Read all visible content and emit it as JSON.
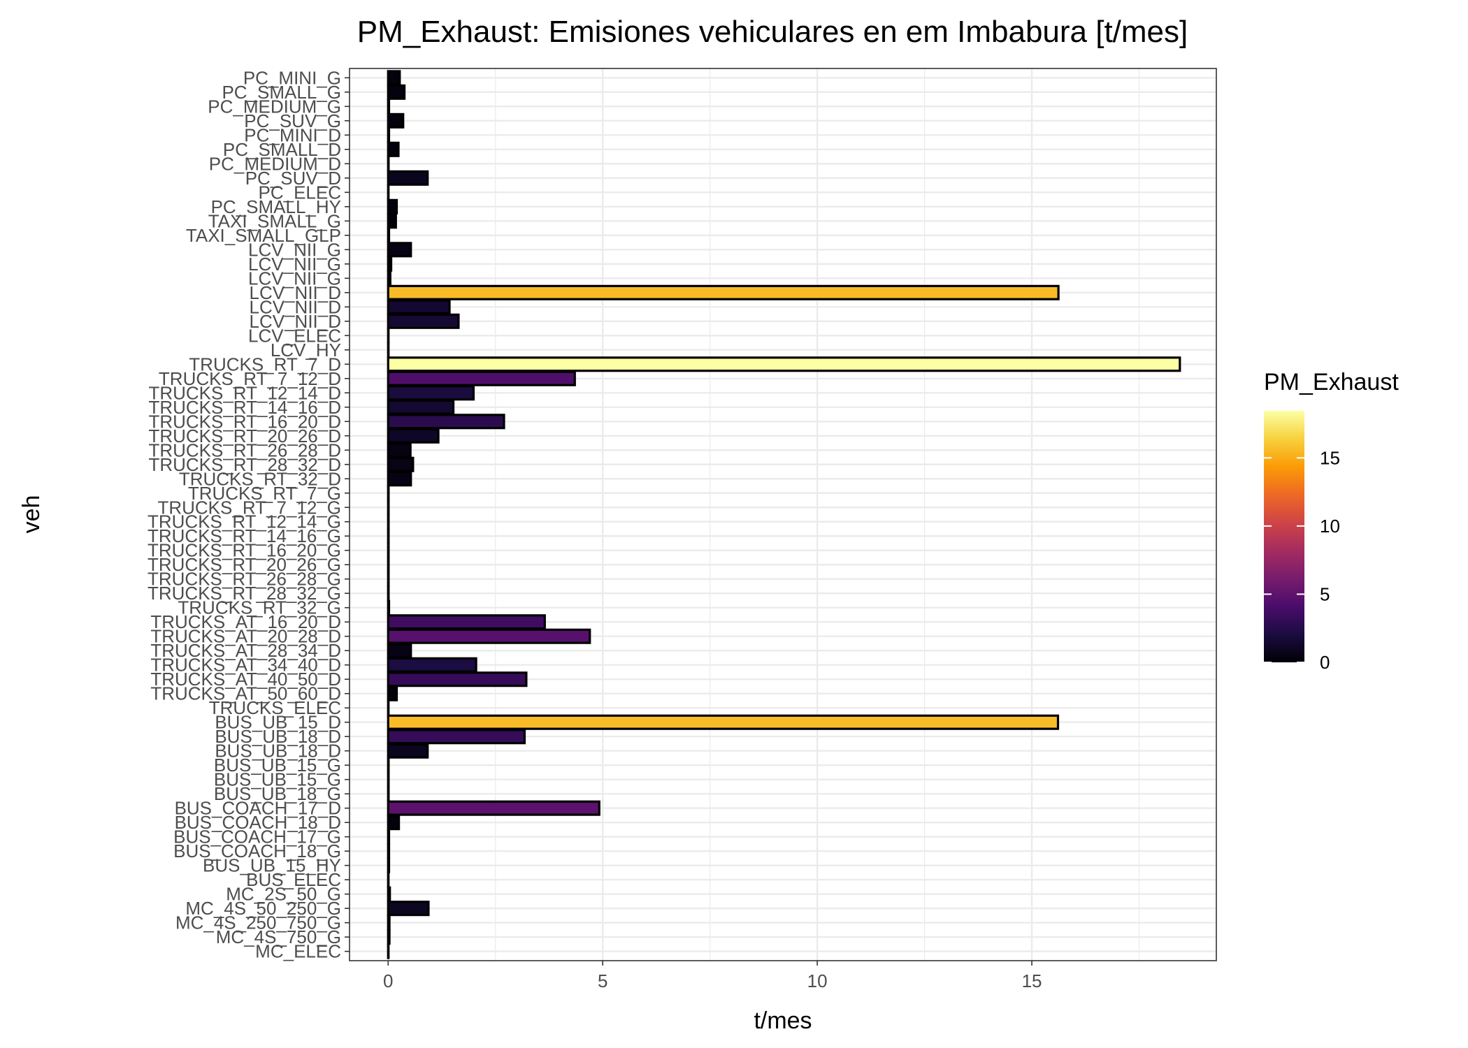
{
  "chart_data": {
    "type": "bar",
    "orientation": "horizontal",
    "title": "PM_Exhaust: Emisiones vehiculares en  em Imbabura [t/mes]",
    "xlabel": "t/mes",
    "ylabel": "veh",
    "xlim": [
      -0.9,
      19.3
    ],
    "x_ticks": [
      0,
      5,
      10,
      15
    ],
    "grid": true,
    "categories": [
      "PC_MINI_G",
      "PC_SMALL_G",
      "PC_MEDIUM_G",
      "PC_SUV_G",
      "PC_MINI_D",
      "PC_SMALL_D",
      "PC_MEDIUM_D",
      "PC_SUV_D",
      "PC_ELEC",
      "PC_SMALL_HY",
      "TAXI_SMALL_G",
      "TAXI_SMALL_GLP",
      "LCV_NII_G",
      "LCV_NII_G",
      "LCV_NII_G",
      "LCV_NII_D",
      "LCV_NII_D",
      "LCV_NII_D",
      "LCV_ELEC",
      "LCV_HY",
      "TRUCKS_RT_7_D",
      "TRUCKS_RT_7_12_D",
      "TRUCKS_RT_12_14_D",
      "TRUCKS_RT_14_16_D",
      "TRUCKS_RT_16_20_D",
      "TRUCKS_RT_20_26_D",
      "TRUCKS_RT_26_28_D",
      "TRUCKS_RT_28_32_D",
      "TRUCKS_RT_32_D",
      "TRUCKS_RT_7_G",
      "TRUCKS_RT_7_12_G",
      "TRUCKS_RT_12_14_G",
      "TRUCKS_RT_14_16_G",
      "TRUCKS_RT_16_20_G",
      "TRUCKS_RT_20_26_G",
      "TRUCKS_RT_26_28_G",
      "TRUCKS_RT_28_32_G",
      "TRUCKS_RT_32_G",
      "TRUCKS_AT_16_20_D",
      "TRUCKS_AT_20_28_D",
      "TRUCKS_AT_28_34_D",
      "TRUCKS_AT_34_40_D",
      "TRUCKS_AT_40_50_D",
      "TRUCKS_AT_50_60_D",
      "TRUCKS_ELEC",
      "BUS_UB_15_D",
      "BUS_UB_18_D",
      "BUS_UB_18_D",
      "BUS_UB_15_G",
      "BUS_UB_15_G",
      "BUS_UB_18_G",
      "BUS_COACH_17_D",
      "BUS_COACH_18_D",
      "BUS_COACH_17_G",
      "BUS_COACH_18_G",
      "BUS_UB_15_HY",
      "BUS_ELEC",
      "MC_2S_50_G",
      "MC_4S_50_250_G",
      "MC_4S_250_750_G",
      "MC_4S_750_G",
      "MC_ELEC"
    ],
    "values": [
      0.27,
      0.38,
      0.02,
      0.35,
      0.02,
      0.24,
      0.01,
      0.92,
      0.0,
      0.2,
      0.18,
      0.02,
      0.53,
      0.07,
      0.05,
      15.62,
      1.43,
      1.64,
      0.0,
      0.0,
      18.45,
      4.35,
      1.99,
      1.52,
      2.7,
      1.17,
      0.52,
      0.58,
      0.53,
      0.01,
      0.01,
      0.01,
      0.01,
      0.01,
      0.01,
      0.01,
      0.01,
      0.02,
      3.65,
      4.7,
      0.53,
      2.05,
      3.22,
      0.2,
      0.0,
      15.61,
      3.18,
      0.92,
      0.01,
      0.01,
      0.01,
      4.92,
      0.25,
      0.02,
      0.02,
      0.02,
      0.0,
      0.04,
      0.94,
      0.03,
      0.03,
      0.0
    ],
    "legend": {
      "title": "PM_Exhaust",
      "placement": "right",
      "range": [
        0,
        18.45
      ],
      "ticks": [
        0,
        5,
        10,
        15
      ]
    },
    "colormap": [
      "#000004",
      "#1b0c41",
      "#4a0c6b",
      "#781c6d",
      "#a52c60",
      "#cf4446",
      "#ed6925",
      "#fb9b06",
      "#f7d13d",
      "#fcffa4"
    ]
  }
}
